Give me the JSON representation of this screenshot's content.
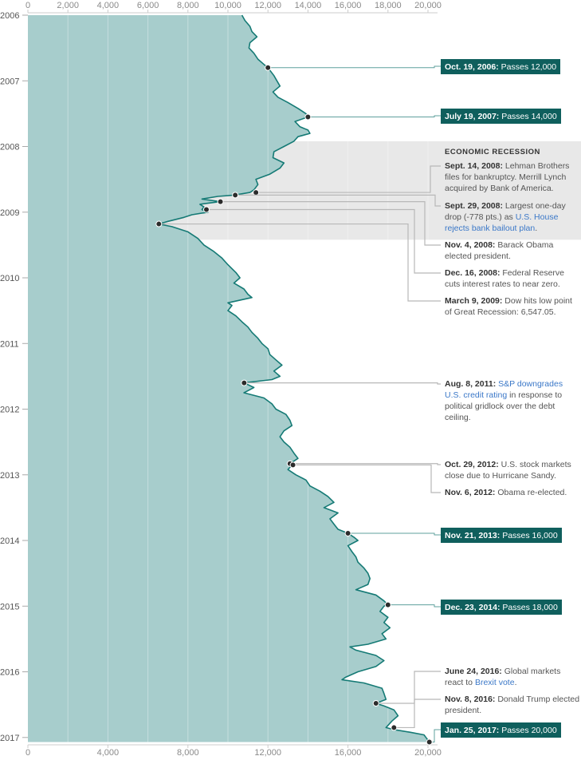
{
  "chart_data": {
    "type": "area",
    "orientation": "vertical-time",
    "xlim": [
      0,
      20000
    ],
    "x_ticks_top": [
      "0",
      "2,000",
      "4,000",
      "6,000",
      "8,000",
      "10,000",
      "12,000",
      "14,000",
      "16,000",
      "18,000",
      "20,000"
    ],
    "x_ticks_bottom": [
      "0",
      "4,000",
      "8,000",
      "12,000",
      "16,000",
      "20,000"
    ],
    "years": [
      "2006",
      "2007",
      "2008",
      "2009",
      "2010",
      "2011",
      "2012",
      "2013",
      "2014",
      "2015",
      "2016",
      "2017"
    ],
    "colors": {
      "area": "#a7cdcc",
      "line": "#157a75",
      "recession_band": "#e8e8e8",
      "milestone_box": "#0f5f5d",
      "leader": "#b8b8b8",
      "link": "#3b78c8"
    },
    "series": [
      {
        "values": [
          [
            2006.0,
            10700
          ],
          [
            2006.08,
            10850
          ],
          [
            2006.17,
            11100
          ],
          [
            2006.25,
            11200
          ],
          [
            2006.33,
            11450
          ],
          [
            2006.42,
            11100
          ],
          [
            2006.5,
            11050
          ],
          [
            2006.58,
            11300
          ],
          [
            2006.67,
            11500
          ],
          [
            2006.75,
            11800
          ],
          [
            2006.8,
            12000
          ],
          [
            2006.92,
            12300
          ],
          [
            2007.0,
            12450
          ],
          [
            2007.08,
            12600
          ],
          [
            2007.17,
            12250
          ],
          [
            2007.25,
            12500
          ],
          [
            2007.33,
            13000
          ],
          [
            2007.42,
            13500
          ],
          [
            2007.5,
            13900
          ],
          [
            2007.55,
            14000
          ],
          [
            2007.62,
            13350
          ],
          [
            2007.7,
            13600
          ],
          [
            2007.75,
            14000
          ],
          [
            2007.8,
            14100
          ],
          [
            2007.85,
            13500
          ],
          [
            2007.92,
            13300
          ],
          [
            2008.0,
            12800
          ],
          [
            2008.08,
            12300
          ],
          [
            2008.17,
            12250
          ],
          [
            2008.25,
            12800
          ],
          [
            2008.33,
            12600
          ],
          [
            2008.42,
            12100
          ],
          [
            2008.5,
            11400
          ],
          [
            2008.58,
            11500
          ],
          [
            2008.66,
            11300
          ],
          [
            2008.7,
            11100
          ],
          [
            2008.74,
            10300
          ],
          [
            2008.76,
            9500
          ],
          [
            2008.8,
            8700
          ],
          [
            2008.84,
            9600
          ],
          [
            2008.88,
            8600
          ],
          [
            2008.92,
            8800
          ],
          [
            2008.96,
            8700
          ],
          [
            2009.0,
            9000
          ],
          [
            2009.04,
            8200
          ],
          [
            2009.08,
            7800
          ],
          [
            2009.14,
            7000
          ],
          [
            2009.18,
            6547
          ],
          [
            2009.22,
            7200
          ],
          [
            2009.3,
            8000
          ],
          [
            2009.4,
            8500
          ],
          [
            2009.5,
            8800
          ],
          [
            2009.6,
            9300
          ],
          [
            2009.7,
            9700
          ],
          [
            2009.8,
            10000
          ],
          [
            2009.92,
            10400
          ],
          [
            2010.0,
            10600
          ],
          [
            2010.08,
            10300
          ],
          [
            2010.17,
            10800
          ],
          [
            2010.25,
            11000
          ],
          [
            2010.3,
            11200
          ],
          [
            2010.38,
            10000
          ],
          [
            2010.42,
            10200
          ],
          [
            2010.5,
            10000
          ],
          [
            2010.58,
            10400
          ],
          [
            2010.67,
            10700
          ],
          [
            2010.75,
            11000
          ],
          [
            2010.83,
            11200
          ],
          [
            2010.92,
            11500
          ],
          [
            2011.0,
            11700
          ],
          [
            2011.08,
            12000
          ],
          [
            2011.17,
            12100
          ],
          [
            2011.25,
            12400
          ],
          [
            2011.33,
            12700
          ],
          [
            2011.42,
            12300
          ],
          [
            2011.5,
            12600
          ],
          [
            2011.55,
            12200
          ],
          [
            2011.6,
            10810
          ],
          [
            2011.67,
            11300
          ],
          [
            2011.75,
            10800
          ],
          [
            2011.83,
            11800
          ],
          [
            2011.92,
            12200
          ],
          [
            2012.0,
            12400
          ],
          [
            2012.08,
            12900
          ],
          [
            2012.17,
            13100
          ],
          [
            2012.25,
            13200
          ],
          [
            2012.33,
            12800
          ],
          [
            2012.42,
            12600
          ],
          [
            2012.5,
            12800
          ],
          [
            2012.58,
            13100
          ],
          [
            2012.67,
            13300
          ],
          [
            2012.75,
            13500
          ],
          [
            2012.83,
            13100
          ],
          [
            2012.85,
            13200
          ],
          [
            2012.92,
            13000
          ],
          [
            2013.0,
            13400
          ],
          [
            2013.08,
            13900
          ],
          [
            2013.17,
            14100
          ],
          [
            2013.25,
            14600
          ],
          [
            2013.33,
            15000
          ],
          [
            2013.42,
            15300
          ],
          [
            2013.5,
            14800
          ],
          [
            2013.58,
            15500
          ],
          [
            2013.67,
            15100
          ],
          [
            2013.75,
            15300
          ],
          [
            2013.83,
            15500
          ],
          [
            2013.89,
            16000
          ],
          [
            2013.95,
            16300
          ],
          [
            2014.0,
            16500
          ],
          [
            2014.08,
            16000
          ],
          [
            2014.17,
            16200
          ],
          [
            2014.25,
            16400
          ],
          [
            2014.33,
            16500
          ],
          [
            2014.42,
            16800
          ],
          [
            2014.5,
            17000
          ],
          [
            2014.58,
            17100
          ],
          [
            2014.67,
            17000
          ],
          [
            2014.75,
            16400
          ],
          [
            2014.83,
            17400
          ],
          [
            2014.92,
            17800
          ],
          [
            2014.98,
            18000
          ],
          [
            2015.0,
            17800
          ],
          [
            2015.08,
            17600
          ],
          [
            2015.17,
            18000
          ],
          [
            2015.25,
            17800
          ],
          [
            2015.33,
            18100
          ],
          [
            2015.42,
            17700
          ],
          [
            2015.5,
            17900
          ],
          [
            2015.58,
            17000
          ],
          [
            2015.62,
            16100
          ],
          [
            2015.67,
            16400
          ],
          [
            2015.75,
            17400
          ],
          [
            2015.83,
            17800
          ],
          [
            2015.92,
            17400
          ],
          [
            2016.0,
            16500
          ],
          [
            2016.08,
            15900
          ],
          [
            2016.12,
            15700
          ],
          [
            2016.17,
            16800
          ],
          [
            2016.25,
            17700
          ],
          [
            2016.33,
            17800
          ],
          [
            2016.42,
            17900
          ],
          [
            2016.48,
            17400
          ],
          [
            2016.52,
            17800
          ],
          [
            2016.58,
            18300
          ],
          [
            2016.67,
            18500
          ],
          [
            2016.75,
            18200
          ],
          [
            2016.85,
            17900
          ],
          [
            2016.88,
            18300
          ],
          [
            2016.92,
            19100
          ],
          [
            2016.96,
            19800
          ],
          [
            2017.0,
            19900
          ],
          [
            2017.07,
            20068
          ]
        ]
      }
    ],
    "recession": {
      "title": "ECONOMIC RECESSION",
      "start": 2007.92,
      "end": 2009.42
    },
    "milestones": [
      {
        "t": 2006.8,
        "value": 12000,
        "date": "Oct. 19, 2006:",
        "text": "Passes 12,000"
      },
      {
        "t": 2007.55,
        "value": 14000,
        "date": "July 19, 2007:",
        "text": "Passes 14,000"
      },
      {
        "t": 2013.89,
        "value": 16000,
        "date": "Nov. 21, 2013:",
        "text": "Passes 16,000"
      },
      {
        "t": 2014.98,
        "value": 18000,
        "date": "Dec. 23, 2014:",
        "text": "Passes 18,000"
      },
      {
        "t": 2017.07,
        "value": 20068,
        "date": "Jan. 25, 2017:",
        "text": "Passes 20,000"
      }
    ],
    "events": [
      {
        "t": 2008.7,
        "value": 11400,
        "date": "Sept. 14, 2008:",
        "text": "Lehman Brothers files for bankruptcy. Merrill Lynch acquired by Bank of America.",
        "link": ""
      },
      {
        "t": 2008.74,
        "value": 10365,
        "date": "Sept. 29, 2008:",
        "text": "Largest one-day drop (-778 pts.) as",
        "link": "U.S. House rejects bank bailout plan",
        "after": "."
      },
      {
        "t": 2008.84,
        "value": 9625,
        "date": "Nov. 4, 2008:",
        "text": "Barack Obama elected president.",
        "link": ""
      },
      {
        "t": 2008.96,
        "value": 8924,
        "date": "Dec. 16, 2008:",
        "text": "Federal Reserve cuts interest rates to near zero.",
        "link": ""
      },
      {
        "t": 2009.18,
        "value": 6547,
        "date": "March 9, 2009:",
        "text": "Dow hits low point of Great Recession: 6,547.05.",
        "link": ""
      },
      {
        "t": 2011.6,
        "value": 10810,
        "date": "Aug. 8, 2011:",
        "text": "",
        "link": "S&P downgrades U.S. credit rating",
        "after": " in response to political gridlock over the debt ceiling."
      },
      {
        "t": 2012.83,
        "value": 13100,
        "date": "Oct. 29, 2012:",
        "text": "U.S. stock markets close due to Hurricane Sandy.",
        "link": ""
      },
      {
        "t": 2012.85,
        "value": 13250,
        "date": "Nov. 6, 2012:",
        "text": "Obama re-elected.",
        "link": ""
      },
      {
        "t": 2016.48,
        "value": 17400,
        "date": "June 24, 2016:",
        "text": "Global markets react to",
        "link": "Brexit vote",
        "after": "."
      },
      {
        "t": 2016.85,
        "value": 18300,
        "date": "Nov. 8, 2016:",
        "text": "Donald Trump elected president.",
        "link": ""
      }
    ]
  }
}
